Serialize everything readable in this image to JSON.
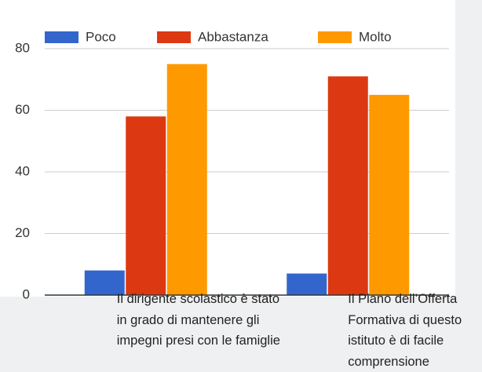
{
  "chart_data": {
    "type": "bar",
    "categories": [
      "Il dirigente scolastico è stato in grado di mantenere gli impegni presi con le famiglie",
      "Il Piano dell’Offerta Formativa di questo istituto è di facile comprensione"
    ],
    "series": [
      {
        "name": "Poco",
        "color": "#3366cc",
        "values": [
          8,
          7
        ]
      },
      {
        "name": "Abbastanza",
        "color": "#dc3912",
        "values": [
          58,
          71
        ]
      },
      {
        "name": "Molto",
        "color": "#ff9900",
        "values": [
          75,
          65
        ]
      }
    ],
    "ylim": [
      0,
      80
    ],
    "yticks": [
      0,
      20,
      40,
      60,
      80
    ],
    "grid": true,
    "legend": "top"
  }
}
